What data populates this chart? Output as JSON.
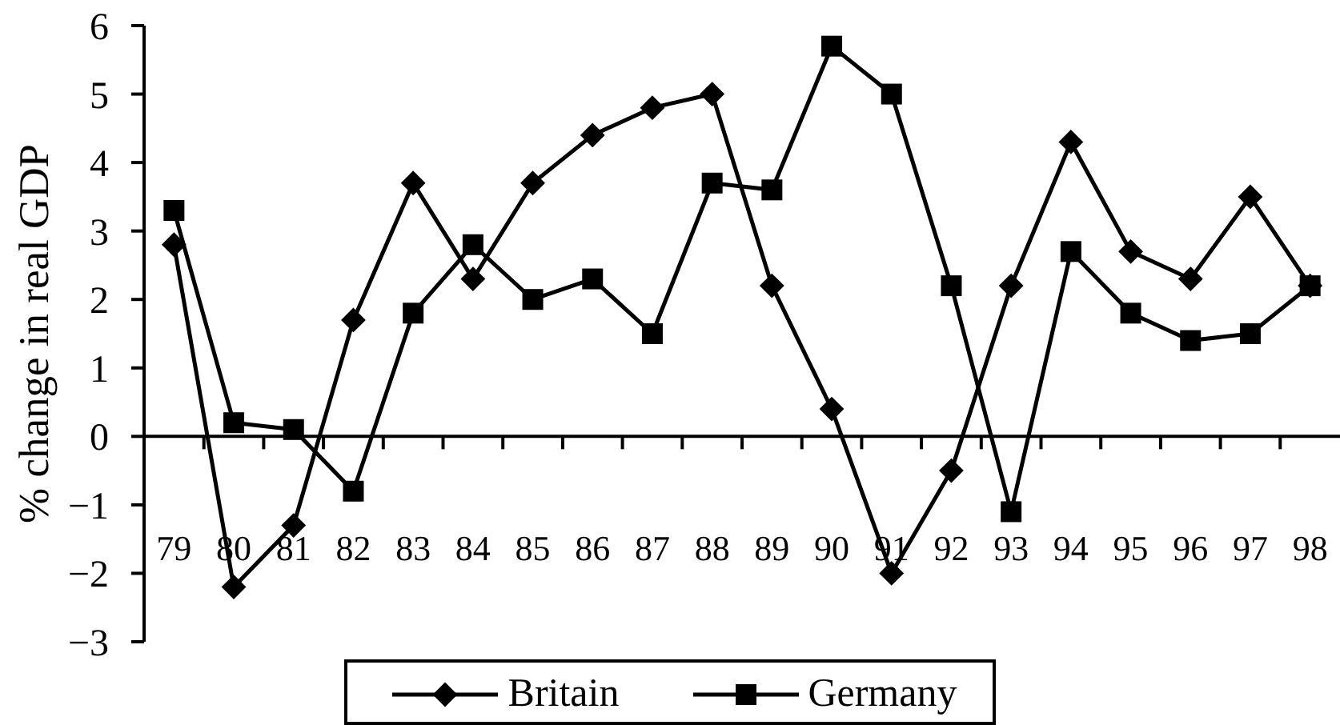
{
  "chart_data": {
    "type": "line",
    "ylabel": "% change in real GDP",
    "categories": [
      "79",
      "80",
      "81",
      "82",
      "83",
      "84",
      "85",
      "86",
      "87",
      "88",
      "89",
      "90",
      "91",
      "92",
      "93",
      "94",
      "95",
      "96",
      "97",
      "98"
    ],
    "series": [
      {
        "name": "Britain",
        "color": "#000000",
        "marker": "diamond",
        "values": [
          2.8,
          -2.2,
          -1.3,
          1.7,
          3.7,
          2.3,
          3.7,
          4.4,
          4.8,
          5.0,
          2.2,
          0.4,
          -2.0,
          -0.5,
          2.2,
          4.3,
          2.7,
          2.3,
          3.5,
          2.2
        ]
      },
      {
        "name": "Germany",
        "color": "#000000",
        "marker": "square",
        "values": [
          3.3,
          0.2,
          0.1,
          -0.8,
          1.8,
          2.8,
          2.0,
          2.3,
          1.5,
          3.7,
          3.6,
          5.7,
          5.0,
          2.2,
          -1.1,
          2.7,
          1.8,
          1.4,
          1.5,
          2.2
        ]
      }
    ],
    "ylim": [
      -3,
      6
    ],
    "yticks": [
      -3,
      -2,
      -1,
      0,
      1,
      2,
      3,
      4,
      5,
      6
    ],
    "ref_lines": [
      {
        "axis": "y",
        "value": 0,
        "color": "#000000"
      }
    ],
    "grid": false,
    "legend": "bottom",
    "line_style": "solid"
  }
}
